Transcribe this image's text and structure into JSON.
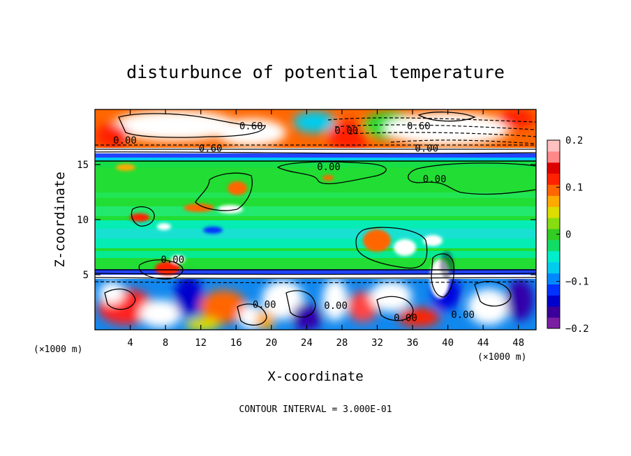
{
  "chart_data": {
    "type": "heatmap",
    "title": "disturbunce of potential temperature",
    "xlabel": "X-coordinate",
    "ylabel": "Z-coordinate",
    "x_unit": "(×1000 m)",
    "x_ticks": [
      4,
      8,
      12,
      16,
      20,
      24,
      28,
      32,
      36,
      40,
      44,
      48
    ],
    "y_ticks": [
      5,
      10,
      15
    ],
    "xlim": [
      0,
      50
    ],
    "ylim": [
      0,
      20
    ],
    "colorbar": {
      "min": -0.2,
      "max": 0.2,
      "tick_values": [
        0.2,
        0.1,
        0,
        -0.1,
        -0.2
      ],
      "tick_labels": [
        "0.2",
        "0.1",
        "0",
        "−0.1",
        "−0.2"
      ],
      "colors": [
        "#7b1fa2",
        "#3a0099",
        "#0000cc",
        "#0033ff",
        "#0088ff",
        "#00ccee",
        "#00eecc",
        "#11dd66",
        "#33cc22",
        "#88dd11",
        "#dddd00",
        "#ffaa00",
        "#ff6600",
        "#ff2200",
        "#dd0000",
        "#ff8888",
        "#ffc0c0"
      ]
    },
    "contour_labels": [
      {
        "text": "0.00",
        "x": 8.8,
        "z": 6.4
      },
      {
        "text": "0.00",
        "x": 26.5,
        "z": 14.8
      },
      {
        "text": "0.00",
        "x": 38.5,
        "z": 13.7
      },
      {
        "text": "0.00",
        "x": 35.2,
        "z": 1.1
      },
      {
        "text": "0.00",
        "x": 19.2,
        "z": 2.3
      },
      {
        "text": "0.00",
        "x": 27.3,
        "z": 2.2
      },
      {
        "text": "0.00",
        "x": 41.7,
        "z": 1.4
      },
      {
        "text": "0.00",
        "x": 3.4,
        "z": 17.2
      },
      {
        "text": "0.00",
        "x": 28.5,
        "z": 18.1
      },
      {
        "text": "0.00",
        "x": 37.6,
        "z": 16.5
      },
      {
        "text": "0.60",
        "x": 17.7,
        "z": 18.5
      },
      {
        "text": "0.60",
        "x": 13.1,
        "z": 16.5
      },
      {
        "text": "0.60",
        "x": 36.7,
        "z": 18.5
      }
    ],
    "footnote": "CONTOUR INTERVAL = 3.000E-01",
    "grid": false,
    "legend": "colorbar-right"
  }
}
